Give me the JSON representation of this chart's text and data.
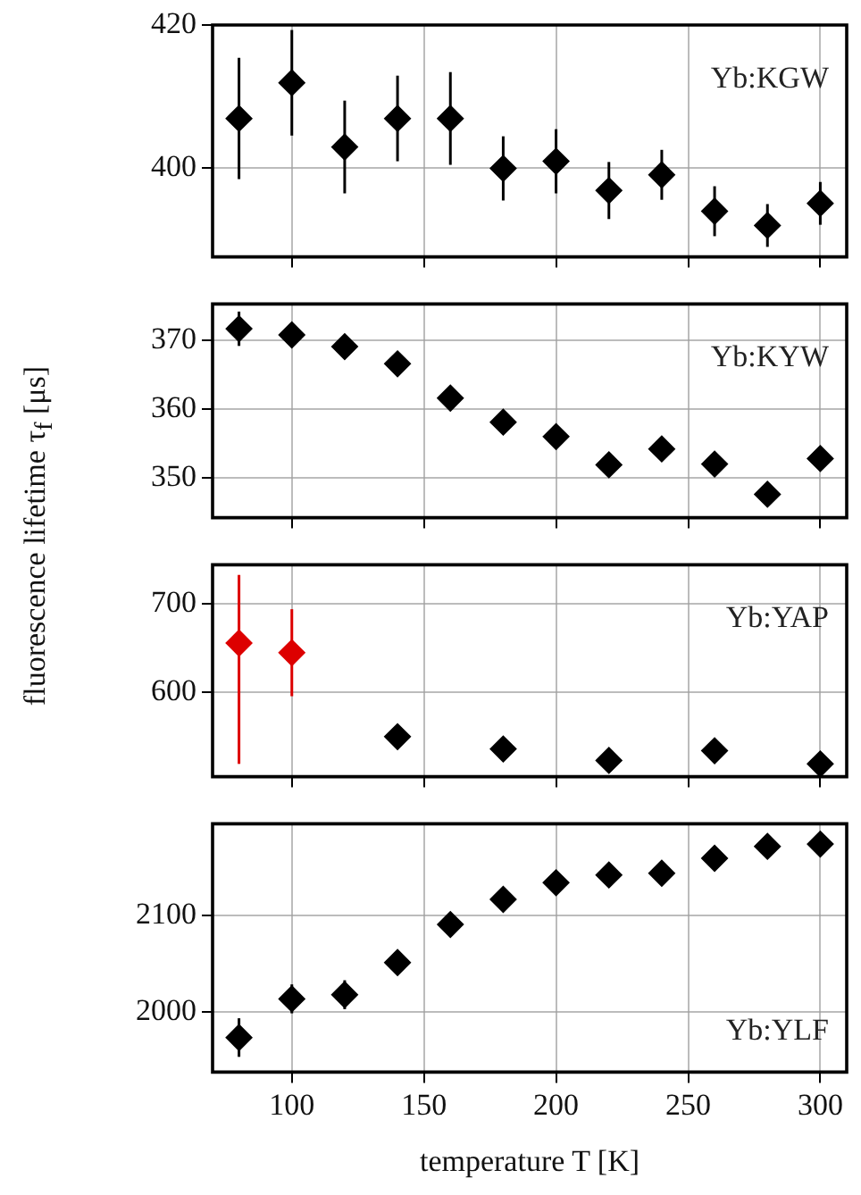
{
  "chart_data": [
    {
      "type": "scatter",
      "ylabel": "fluorescence lifetime τ$_{f}$ [μs]",
      "annotations": [
        "Yb:KGW"
      ],
      "x": [
        80,
        100,
        120,
        140,
        160,
        180,
        200,
        220,
        240,
        260,
        280,
        300
      ],
      "values": [
        406.9,
        411.9,
        402.9,
        406.9,
        406.9,
        399.9,
        400.9,
        396.8,
        399,
        393.9,
        391.9,
        395
      ],
      "errors": [
        8.5,
        7.4,
        6.5,
        6,
        6.5,
        4.5,
        4.5,
        4,
        3.5,
        3.5,
        3,
        3
      ],
      "color": "#000000",
      "marker": "diamond",
      "grid": true,
      "xlim": [
        70,
        310
      ],
      "xticks": [
        100,
        150,
        200,
        250,
        300
      ],
      "ylim": [
        387.5,
        420
      ],
      "yticks": [
        400,
        420
      ],
      "tick_labels": "y"
    },
    {
      "type": "scatter",
      "annotations": [
        "Yb:KYW"
      ],
      "x": [
        80,
        100,
        120,
        140,
        160,
        180,
        200,
        220,
        240,
        260,
        280,
        300
      ],
      "values": [
        371.7,
        370.8,
        369.1,
        366.6,
        361.6,
        358.1,
        356,
        351.9,
        354.2,
        352,
        347.6,
        352.8
      ],
      "errors": [
        2.5,
        null,
        null,
        null,
        null,
        null,
        null,
        null,
        null,
        null,
        null,
        null
      ],
      "color": "#000000",
      "marker": "diamond",
      "grid": true,
      "xlim": [
        70,
        310
      ],
      "xticks": [
        100,
        150,
        200,
        250,
        300
      ],
      "ylim": [
        344.2,
        375.3
      ],
      "yticks": [
        350,
        360,
        370
      ],
      "tick_labels": "y"
    },
    {
      "type": "scatter",
      "annotations": [
        "Yb:YAP"
      ],
      "x": [
        80,
        100,
        140,
        180,
        220,
        260,
        300
      ],
      "values": [
        655.5,
        644.5,
        549,
        535,
        522,
        533,
        518
      ],
      "errors": [
        [
          518,
          733
        ],
        [
          595,
          694
        ],
        null,
        null,
        null,
        null,
        null
      ],
      "colors": [
        "#dd0000",
        "#dd0000",
        "#000000",
        "#000000",
        "#000000",
        "#000000",
        "#000000"
      ],
      "marker": "diamond",
      "grid": true,
      "xlim": [
        70,
        310
      ],
      "xticks": [
        100,
        150,
        200,
        250,
        300
      ],
      "ylim": [
        503.5,
        744.5
      ],
      "yticks": [
        600,
        700
      ],
      "tick_labels": "y"
    },
    {
      "type": "scatter",
      "xlabel": "temperature T [K]",
      "annotations": [
        "Yb:YLF"
      ],
      "x": [
        80,
        100,
        120,
        140,
        160,
        180,
        200,
        220,
        240,
        260,
        280,
        300
      ],
      "values": [
        1973.5,
        2013.6,
        2017.9,
        2051.2,
        2090.7,
        2116.7,
        2134,
        2142,
        2143.8,
        2159.3,
        2171.6,
        2174
      ],
      "errors": [
        20,
        15,
        15,
        null,
        null,
        null,
        null,
        null,
        null,
        null,
        null,
        null
      ],
      "color": "#000000",
      "marker": "diamond",
      "grid": true,
      "xlim": [
        70,
        310
      ],
      "xticks": [
        100,
        150,
        200,
        250,
        300
      ],
      "ylim": [
        1937.7,
        2195
      ],
      "yticks": [
        2000,
        2100
      ]
    }
  ]
}
